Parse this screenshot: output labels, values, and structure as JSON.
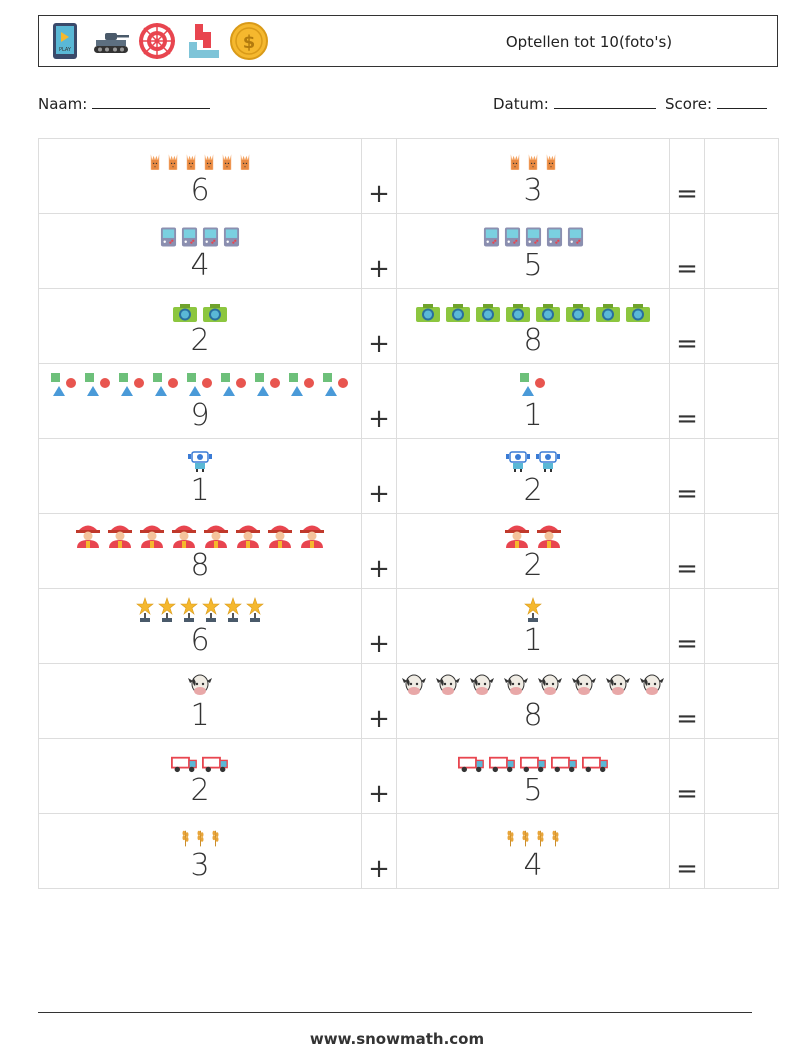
{
  "header": {
    "title": "Optellen tot 10(foto's)",
    "icons": [
      "tablet-play-icon",
      "tank-icon",
      "dartboard-icon",
      "blocks-icon",
      "coin-icon"
    ]
  },
  "info": {
    "name_label": "Naam:",
    "date_label": "Datum:",
    "score_label": "Score:"
  },
  "operators": {
    "plus": "+",
    "equals": "="
  },
  "rows": [
    {
      "a": 6,
      "a_icon": "rabbit-icon",
      "b": 3,
      "b_icon": "rabbit-icon"
    },
    {
      "a": 4,
      "a_icon": "gameboy-icon",
      "b": 5,
      "b_icon": "gameboy-icon"
    },
    {
      "a": 2,
      "a_icon": "camera-icon",
      "b": 8,
      "b_icon": "camera-icon"
    },
    {
      "a": 9,
      "a_icon": "shapes-icon",
      "b": 1,
      "b_icon": "shapes-icon"
    },
    {
      "a": 1,
      "a_icon": "robot-icon",
      "b": 2,
      "b_icon": "robot-icon"
    },
    {
      "a": 8,
      "a_icon": "firefighter-icon",
      "b": 2,
      "b_icon": "firefighter-icon"
    },
    {
      "a": 6,
      "a_icon": "trophy-icon",
      "b": 1,
      "b_icon": "trophy-icon"
    },
    {
      "a": 1,
      "a_icon": "cow-icon",
      "b": 8,
      "b_icon": "cow-icon"
    },
    {
      "a": 2,
      "a_icon": "truck-icon",
      "b": 5,
      "b_icon": "truck-icon"
    },
    {
      "a": 3,
      "a_icon": "wheat-icon",
      "b": 4,
      "b_icon": "wheat-icon"
    }
  ],
  "footer": {
    "url": "www.snowmath.com"
  }
}
